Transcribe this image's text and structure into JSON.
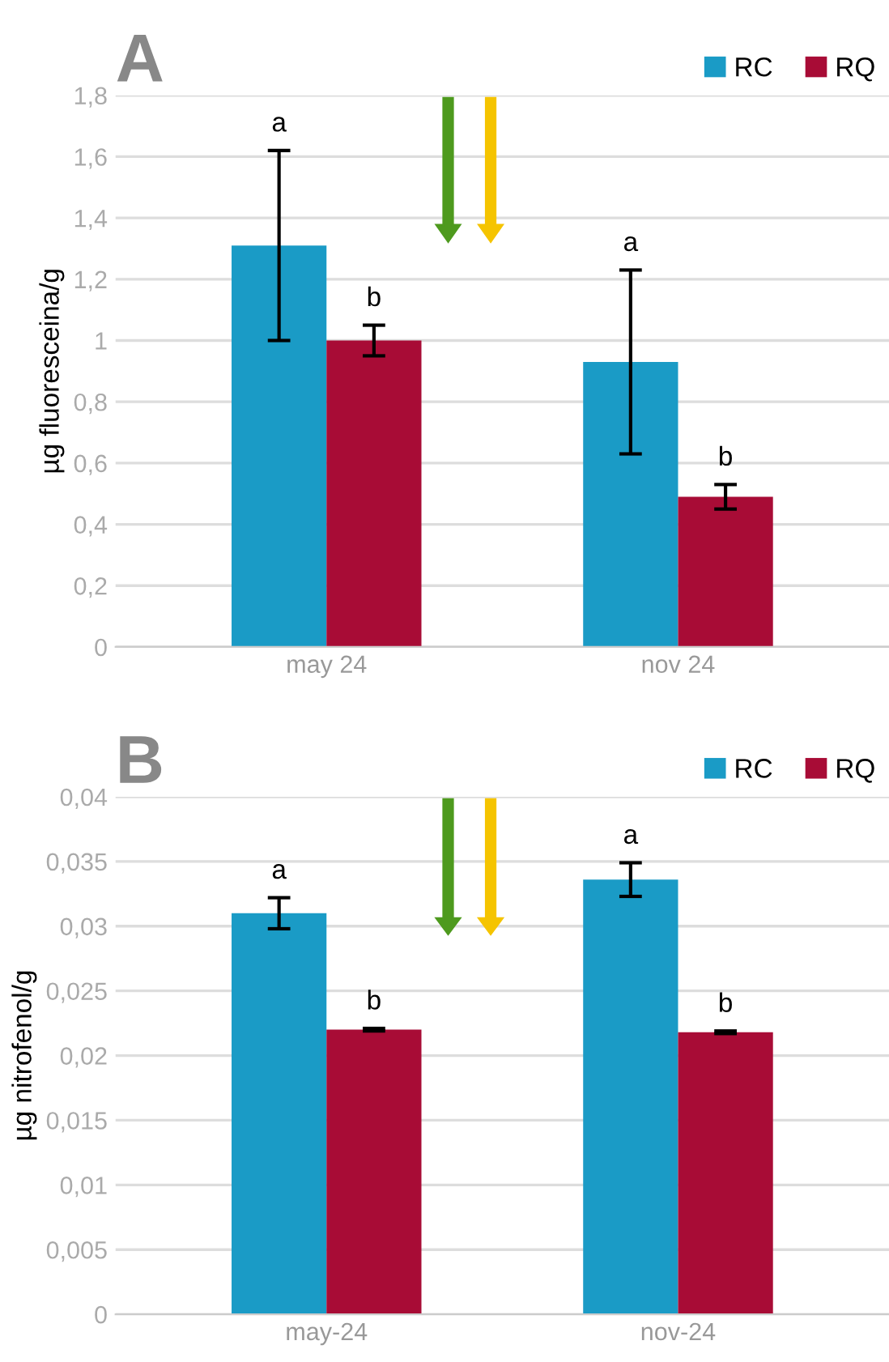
{
  "chart_data": [
    {
      "type": "bar",
      "title": "A",
      "ylabel": "µg fluoresceina/g",
      "categories": [
        "may 24",
        "nov 24"
      ],
      "series": [
        {
          "name": "RC",
          "color": "#1a9bc6",
          "values": [
            1.31,
            0.93
          ],
          "errors": [
            0.31,
            0.3
          ]
        },
        {
          "name": "RQ",
          "color": "#a80c36",
          "values": [
            1.0,
            0.49
          ],
          "errors": [
            0.05,
            0.04
          ]
        }
      ],
      "ylim": [
        0,
        1.8
      ],
      "yticks": [
        0,
        {
          "value": 0.2,
          "label": "0,2"
        },
        {
          "value": 0.4,
          "label": "0,4"
        },
        {
          "value": 0.6,
          "label": "0,6"
        },
        {
          "value": 0.8,
          "label": "0,8"
        },
        1,
        {
          "value": 1.2,
          "label": "1,2"
        },
        {
          "value": 1.4,
          "label": "1,4"
        },
        {
          "value": 1.6,
          "label": "1,6"
        },
        {
          "value": 1.8,
          "label": "1,8"
        }
      ],
      "annotations": [
        "a",
        "b",
        "a",
        "b"
      ],
      "grid": "y",
      "legend": "top right"
    },
    {
      "type": "bar",
      "title": "B",
      "ylabel": "µg nitrofenol/g",
      "categories": [
        "may-24",
        "nov-24"
      ],
      "series": [
        {
          "name": "RC",
          "color": "#1a9bc6",
          "values": [
            0.031,
            0.0336
          ],
          "errors": [
            0.0012,
            0.0013
          ]
        },
        {
          "name": "RQ",
          "color": "#a80c36",
          "values": [
            0.022,
            0.0218
          ],
          "errors": [
            0.0001,
            0.0001
          ]
        }
      ],
      "ylim": [
        0,
        0.04
      ],
      "yticks": [
        0,
        {
          "value": 0.005,
          "label": "0,005"
        },
        {
          "value": 0.01,
          "label": "0,01"
        },
        {
          "value": 0.015,
          "label": "0,015"
        },
        {
          "value": 0.02,
          "label": "0,02"
        },
        {
          "value": 0.025,
          "label": "0,025"
        },
        {
          "value": 0.03,
          "label": "0,03"
        },
        {
          "value": 0.035,
          "label": "0,035"
        },
        {
          "value": 0.04,
          "label": "0,04"
        }
      ],
      "annotations": [
        "a",
        "b",
        "a",
        "b"
      ],
      "grid": "y",
      "legend": "top right"
    }
  ]
}
